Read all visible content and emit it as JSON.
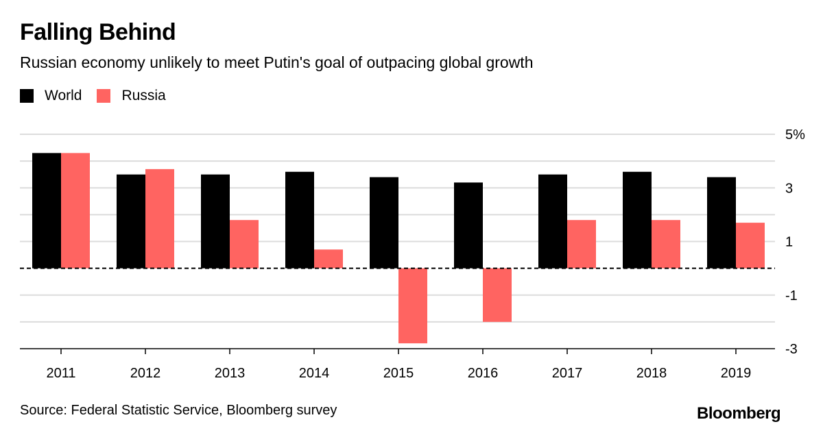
{
  "header": {
    "title": "Falling Behind",
    "subtitle": "Russian economy unlikely to meet Putin's goal of outpacing global growth"
  },
  "footer": {
    "source": "Source: Federal Statistic Service, Bloomberg survey",
    "brand": "Bloomberg"
  },
  "chart_data": {
    "type": "bar",
    "title": "Falling Behind",
    "subtitle": "Russian economy unlikely to meet Putin's goal of outpacing global growth",
    "xlabel": "",
    "ylabel": "",
    "categories": [
      "2011",
      "2012",
      "2013",
      "2014",
      "2015",
      "2016",
      "2017",
      "2018",
      "2019"
    ],
    "series": [
      {
        "name": "World",
        "color": "#000000",
        "values": [
          4.3,
          3.5,
          3.5,
          3.6,
          3.4,
          3.2,
          3.5,
          3.6,
          3.4
        ]
      },
      {
        "name": "Russia",
        "color": "#ff6461",
        "values": [
          4.3,
          3.7,
          1.8,
          0.7,
          -2.8,
          -2.0,
          1.8,
          1.8,
          1.7
        ]
      }
    ],
    "ylim": [
      -3,
      5
    ],
    "yticks": [
      {
        "value": 5,
        "label": "5%"
      },
      {
        "value": 3,
        "label": "3"
      },
      {
        "value": 1,
        "label": "1"
      },
      {
        "value": -1,
        "label": "-1"
      },
      {
        "value": -3,
        "label": "-3"
      }
    ],
    "gridlines": [
      5,
      4,
      3,
      2,
      1,
      -1,
      -2
    ],
    "grid": true,
    "zero_line": "dashed",
    "legend_position": "top-left",
    "y_axis_side": "right"
  }
}
